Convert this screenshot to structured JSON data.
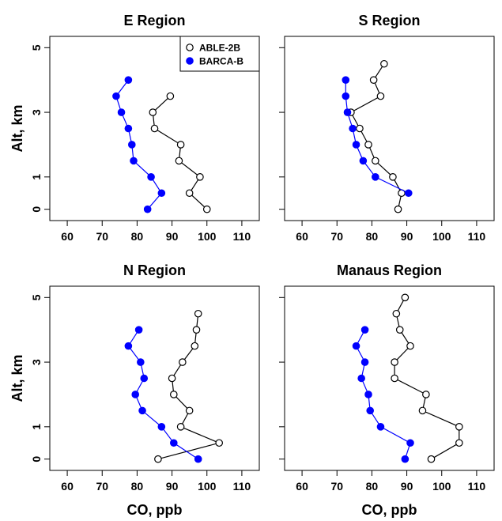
{
  "chart_data": [
    {
      "type": "line",
      "title": "E Region",
      "xlabel": "",
      "ylabel": "Alt, km",
      "xlim": [
        55,
        115
      ],
      "ylim": [
        -0.35,
        5.35
      ],
      "x_ticks": [
        "60",
        "70",
        "80",
        "90",
        "100",
        "110"
      ],
      "y_ticks": [
        "0",
        "1",
        "3",
        "5"
      ],
      "legend": {
        "placement": "top-right",
        "entries": [
          "ABLE-2B",
          "BARCA-B"
        ]
      },
      "series": [
        {
          "name": "ABLE-2B",
          "color": "#000000",
          "marker": "open-circle",
          "x": [
            100,
            95,
            98,
            92,
            92.5,
            85,
            84.5,
            89.5
          ],
          "y": [
            0,
            0.5,
            1,
            1.5,
            2,
            2.5,
            3,
            3.5
          ]
        },
        {
          "name": "BARCA-B",
          "color": "#0000ff",
          "marker": "filled-circle",
          "x": [
            83,
            87,
            84,
            79,
            78.5,
            77.5,
            75.5,
            74,
            77.5
          ],
          "y": [
            0,
            0.5,
            1,
            1.5,
            2,
            2.5,
            3,
            3.5,
            4
          ]
        }
      ]
    },
    {
      "type": "line",
      "title": "S Region",
      "xlabel": "",
      "ylabel": "",
      "xlim": [
        55,
        115
      ],
      "ylim": [
        -0.35,
        5.35
      ],
      "x_ticks": [
        "60",
        "70",
        "80",
        "90",
        "100",
        "110"
      ],
      "y_ticks": [
        "0",
        "1",
        "3",
        "5"
      ],
      "series": [
        {
          "name": "ABLE-2B",
          "color": "#000000",
          "marker": "open-circle",
          "x": [
            87.5,
            88.5,
            86,
            81,
            79,
            76.5,
            74,
            82.5,
            80.5,
            83.5
          ],
          "y": [
            0,
            0.5,
            1,
            1.5,
            2,
            2.5,
            3,
            3.5,
            4,
            4.5
          ]
        },
        {
          "name": "BARCA-B",
          "color": "#0000ff",
          "marker": "filled-circle",
          "x": [
            90.5,
            81,
            77.5,
            75.5,
            74.5,
            73,
            72.5,
            72.5
          ],
          "y": [
            0.5,
            1,
            1.5,
            2,
            2.5,
            3,
            3.5,
            4
          ]
        }
      ]
    },
    {
      "type": "line",
      "title": "N Region",
      "xlabel": "CO, ppb",
      "ylabel": "Alt, km",
      "xlim": [
        55,
        115
      ],
      "ylim": [
        -0.35,
        5.35
      ],
      "x_ticks": [
        "60",
        "70",
        "80",
        "90",
        "100",
        "110"
      ],
      "y_ticks": [
        "0",
        "1",
        "3",
        "5"
      ],
      "series": [
        {
          "name": "ABLE-2B",
          "color": "#000000",
          "marker": "open-circle",
          "x": [
            86,
            103.5,
            92.5,
            95,
            90.5,
            90,
            93,
            96.5,
            97,
            97.5
          ],
          "y": [
            0,
            0.5,
            1,
            1.5,
            2,
            2.5,
            3,
            3.5,
            4,
            4.5
          ]
        },
        {
          "name": "BARCA-B",
          "color": "#0000ff",
          "marker": "filled-circle",
          "x": [
            97.5,
            90.5,
            87,
            81.5,
            79.5,
            82,
            81,
            77.5,
            80.5
          ],
          "y": [
            0,
            0.5,
            1,
            1.5,
            2,
            2.5,
            3,
            3.5,
            4
          ]
        }
      ]
    },
    {
      "type": "line",
      "title": "Manaus Region",
      "xlabel": "CO, ppb",
      "ylabel": "",
      "xlim": [
        55,
        115
      ],
      "ylim": [
        -0.35,
        5.35
      ],
      "x_ticks": [
        "60",
        "70",
        "80",
        "90",
        "100",
        "110"
      ],
      "y_ticks": [
        "0",
        "1",
        "3",
        "5"
      ],
      "series": [
        {
          "name": "ABLE-2B",
          "color": "#000000",
          "marker": "open-circle",
          "x": [
            97,
            105,
            105,
            94.5,
            95.5,
            86.5,
            86.5,
            91,
            88,
            87,
            89.5
          ],
          "y": [
            0,
            0.5,
            1,
            1.5,
            2,
            2.5,
            3,
            3.5,
            4,
            4.5,
            5
          ]
        },
        {
          "name": "BARCA-B",
          "color": "#0000ff",
          "marker": "filled-circle",
          "x": [
            89.5,
            91,
            82.5,
            79.5,
            79,
            77,
            78,
            75.5,
            78
          ],
          "y": [
            0,
            0.5,
            1,
            1.5,
            2,
            2.5,
            3,
            3.5,
            4
          ]
        }
      ]
    }
  ]
}
